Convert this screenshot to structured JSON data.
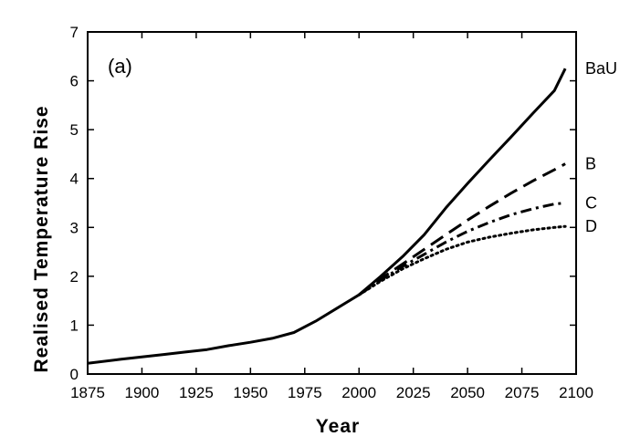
{
  "chart_data": {
    "type": "line",
    "panel_label": "(a)",
    "xlabel": "Year",
    "ylabel": "Realised Temperature Rise",
    "xlim": [
      1875,
      2100
    ],
    "ylim": [
      0,
      7
    ],
    "xticks": [
      1875,
      1900,
      1925,
      1950,
      1975,
      2000,
      2025,
      2050,
      2075,
      2100
    ],
    "yticks": [
      0,
      1,
      2,
      3,
      4,
      5,
      6,
      7
    ],
    "grid": false,
    "legend": "none",
    "series": [
      {
        "name": "BaU",
        "style": "solid",
        "x": [
          1875,
          1890,
          1900,
          1910,
          1920,
          1930,
          1940,
          1950,
          1960,
          1970,
          1980,
          1990,
          2000,
          2010,
          2020,
          2030,
          2040,
          2050,
          2060,
          2070,
          2080,
          2090,
          2095
        ],
        "y": [
          0.22,
          0.3,
          0.35,
          0.4,
          0.45,
          0.5,
          0.58,
          0.65,
          0.73,
          0.85,
          1.08,
          1.35,
          1.62,
          2.0,
          2.4,
          2.85,
          3.4,
          3.9,
          4.38,
          4.85,
          5.33,
          5.8,
          6.25
        ]
      },
      {
        "name": "B",
        "style": "dashed",
        "x": [
          2000,
          2010,
          2020,
          2030,
          2040,
          2050,
          2060,
          2070,
          2080,
          2090,
          2095
        ],
        "y": [
          1.62,
          1.95,
          2.25,
          2.55,
          2.85,
          3.15,
          3.43,
          3.7,
          3.95,
          4.18,
          4.3
        ]
      },
      {
        "name": "C",
        "style": "dash-dot",
        "x": [
          2000,
          2010,
          2020,
          2030,
          2040,
          2050,
          2060,
          2070,
          2080,
          2090,
          2095
        ],
        "y": [
          1.62,
          1.92,
          2.2,
          2.45,
          2.7,
          2.92,
          3.1,
          3.26,
          3.38,
          3.48,
          3.5
        ]
      },
      {
        "name": "D",
        "style": "dotted",
        "x": [
          2000,
          2010,
          2020,
          2030,
          2040,
          2050,
          2060,
          2070,
          2080,
          2090,
          2095
        ],
        "y": [
          1.62,
          1.9,
          2.15,
          2.36,
          2.55,
          2.7,
          2.8,
          2.88,
          2.95,
          3.0,
          3.02
        ]
      }
    ]
  }
}
